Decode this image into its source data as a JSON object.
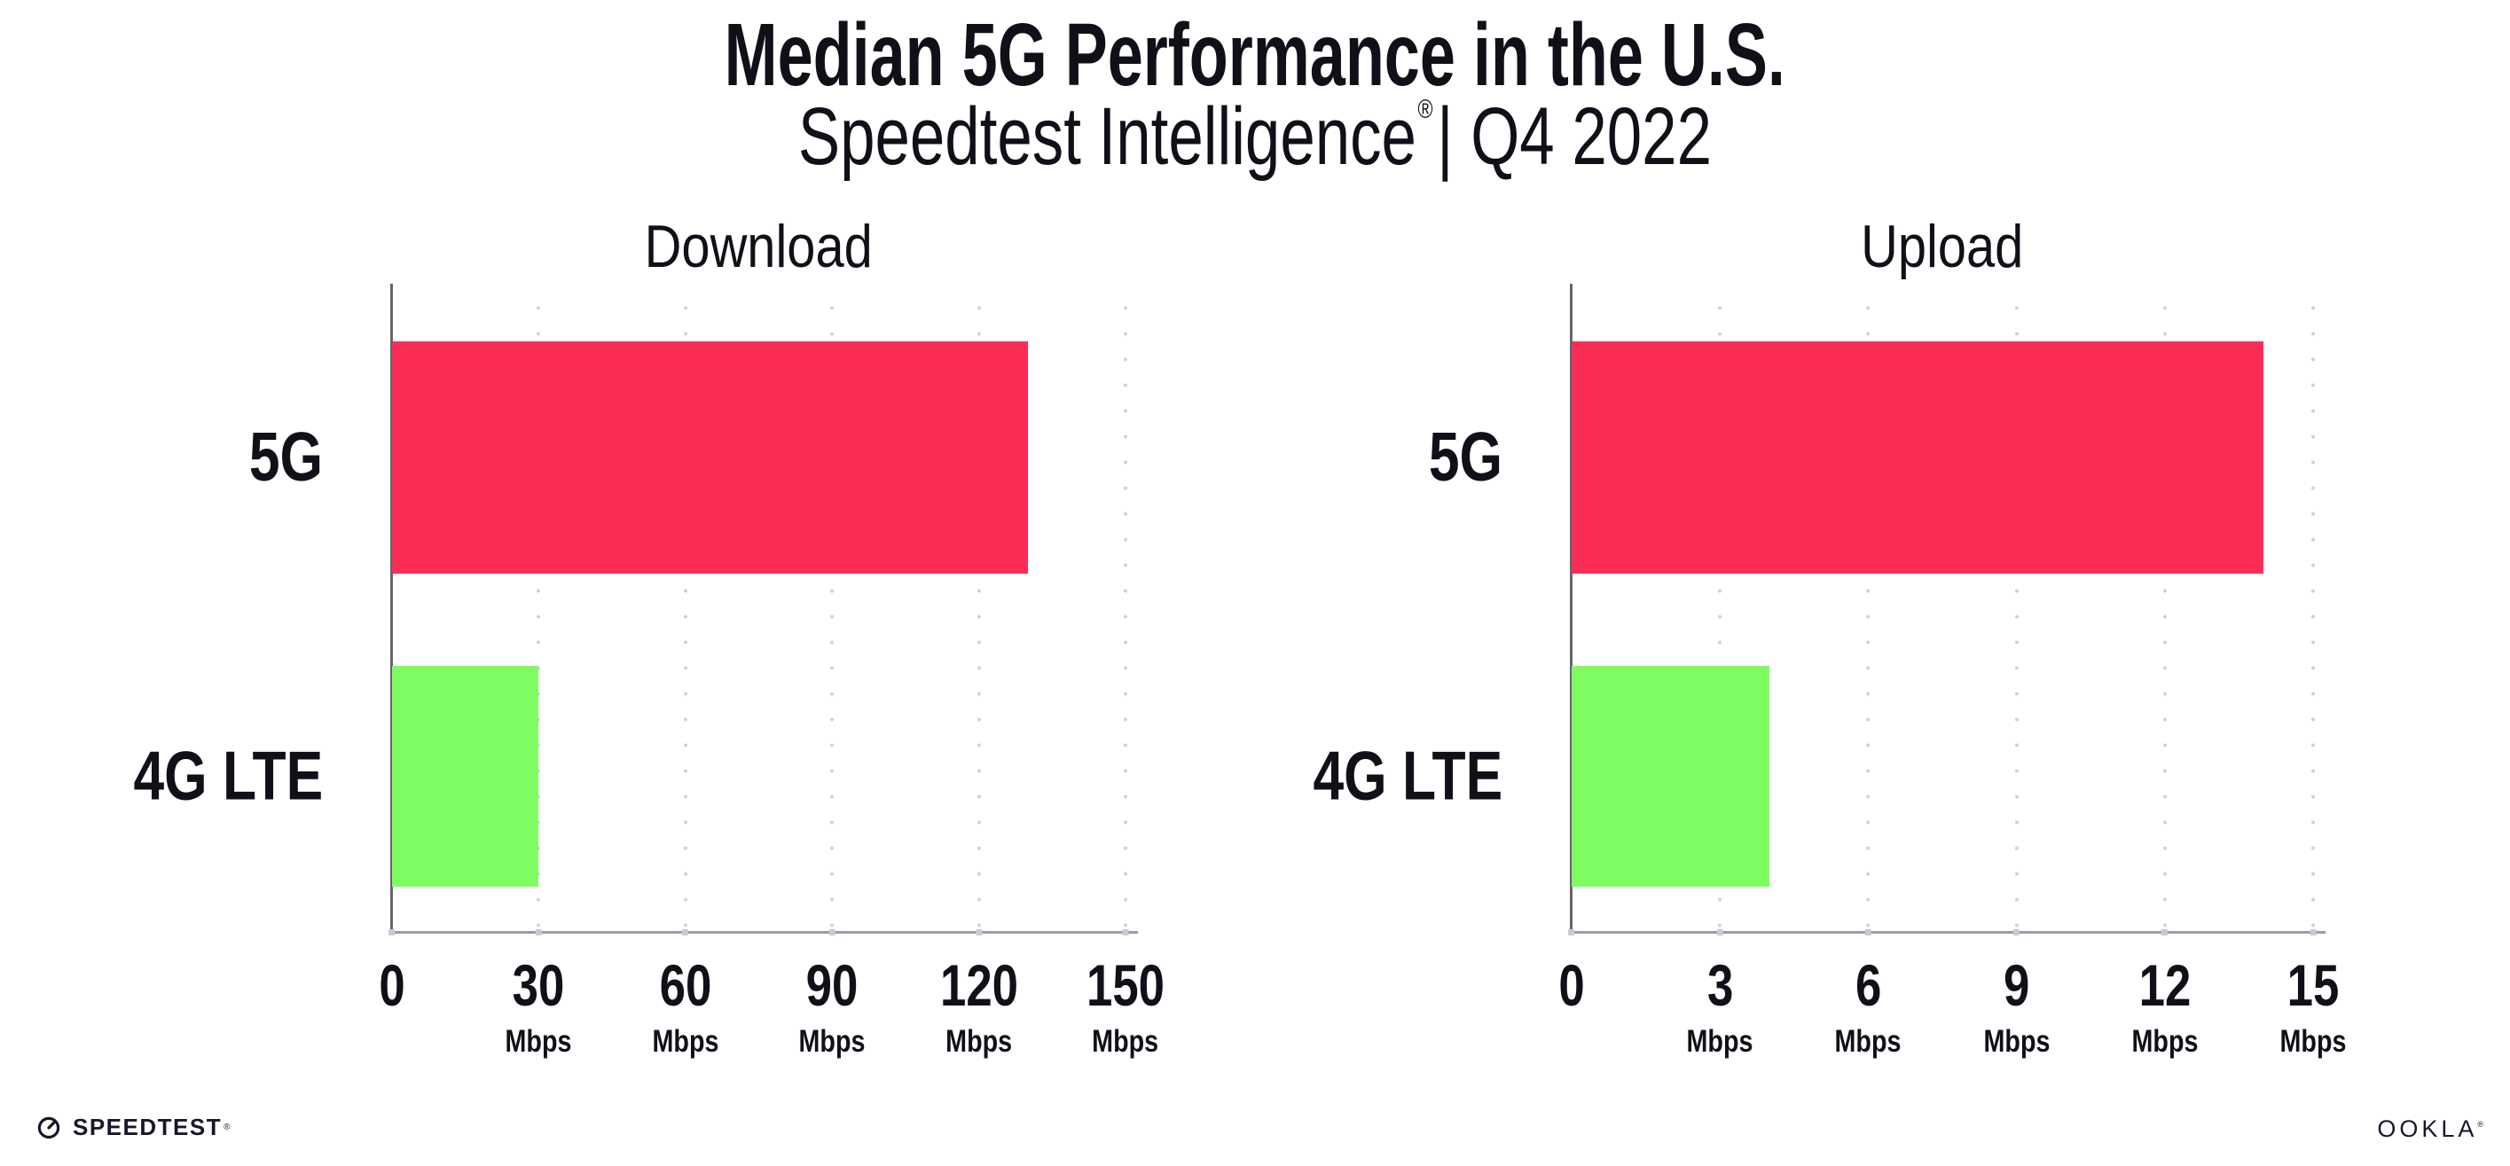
{
  "header": {
    "title": "Median 5G Performance in the U.S.",
    "subtitle_brand": "Speedtest Intelligence",
    "subtitle_registered": "®",
    "subtitle_rest": "| Q4 2022"
  },
  "footer": {
    "speedtest_icon": "speedtest-gauge-icon",
    "speedtest_wordmark": "SPEEDTEST",
    "speedtest_mark": "®",
    "ookla_wordmark": "OOKLA",
    "ookla_mark": "®"
  },
  "colors": {
    "bar_5g": "#FC2D55",
    "bar_4g_lte": "#7EFC62",
    "y_axis": "#65656d",
    "x_axis": "#9b9ba3",
    "gridline": "#cdd0de",
    "text": "#101018"
  },
  "chart_data": [
    {
      "type": "bar",
      "orientation": "horizontal",
      "title": "Download",
      "categories": [
        "5G",
        "4G LTE"
      ],
      "values": [
        130,
        30
      ],
      "unit": "Mbps",
      "xlim": [
        0,
        150
      ],
      "xticks": [
        0,
        30,
        60,
        90,
        120,
        150
      ],
      "xtick_unit_label": "Mbps",
      "grid": "vertical-dotted",
      "legend": "none",
      "bar_colors": [
        "#FC2D55",
        "#7EFC62"
      ]
    },
    {
      "type": "bar",
      "orientation": "horizontal",
      "title": "Upload",
      "categories": [
        "5G",
        "4G LTE"
      ],
      "values": [
        14,
        4
      ],
      "unit": "Mbps",
      "xlim": [
        0,
        15
      ],
      "xticks": [
        0,
        3,
        6,
        9,
        12,
        15
      ],
      "xtick_unit_label": "Mbps",
      "grid": "vertical-dotted",
      "legend": "none",
      "bar_colors": [
        "#FC2D55",
        "#7EFC62"
      ]
    }
  ]
}
